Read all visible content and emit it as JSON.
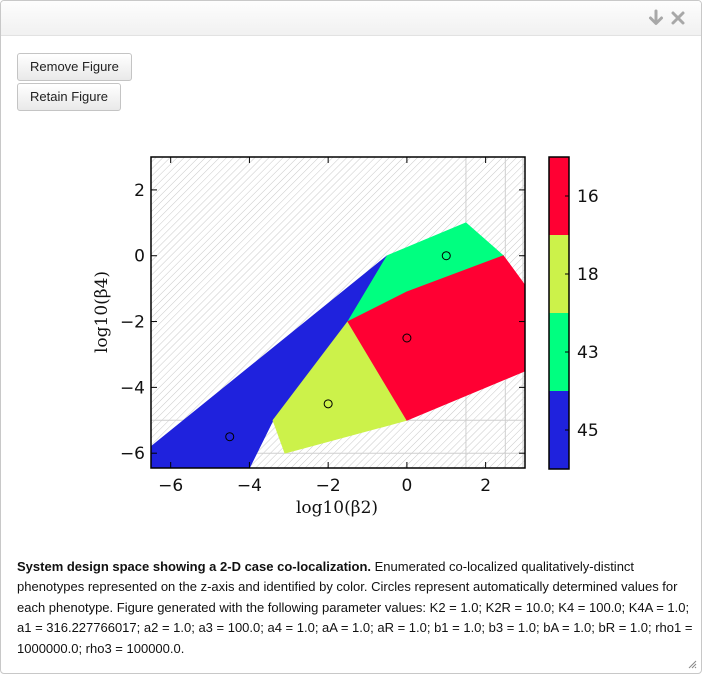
{
  "dialog": {
    "collapse_icon": "arrow-down-icon",
    "close_icon": "close-icon"
  },
  "buttons": {
    "remove_label": "Remove Figure",
    "retain_label": "Retain Figure"
  },
  "chart_data": {
    "type": "region-map",
    "xlabel": "log10(β2)",
    "ylabel": "log10(β4)",
    "xlim": [
      -6.5,
      3.0
    ],
    "ylim": [
      -6.45,
      3.0
    ],
    "xticks": [
      -6,
      -4,
      -2,
      0,
      2
    ],
    "yticks": [
      -6,
      -4,
      -2,
      0,
      2
    ],
    "xtick_labels": [
      "−6",
      "−4",
      "−2",
      "0",
      "2"
    ],
    "ytick_labels": [
      "−6",
      "−4",
      "−2",
      "0",
      "2"
    ],
    "background": "hatched gray",
    "regions": [
      {
        "label": "45",
        "color": "#1f22dd",
        "polygon": [
          [
            -6.5,
            -5.8
          ],
          [
            -0.5,
            0.0
          ],
          [
            -1.5,
            -2.0
          ],
          [
            -3.4,
            -5.0
          ],
          [
            -4.0,
            -6.45
          ],
          [
            -6.5,
            -6.45
          ]
        ],
        "circle": [
          -4.5,
          -5.5
        ]
      },
      {
        "label": "43",
        "color": "#00ff80",
        "polygon": [
          [
            -0.5,
            0.0
          ],
          [
            1.5,
            1.0
          ],
          [
            2.45,
            0.0
          ],
          [
            0.0,
            -1.1
          ],
          [
            -1.5,
            -2.0
          ]
        ],
        "circle": [
          1.0,
          0.0
        ]
      },
      {
        "label": "18",
        "color": "#ccf24a",
        "polygon": [
          [
            -1.5,
            -2.0
          ],
          [
            -3.4,
            -5.0
          ],
          [
            -3.1,
            -6.0
          ],
          [
            0.0,
            -5.0
          ]
        ],
        "circle": [
          -2.0,
          -4.5
        ]
      },
      {
        "label": "16",
        "color": "#ff0033",
        "polygon": [
          [
            -1.5,
            -2.0
          ],
          [
            0.0,
            -1.1
          ],
          [
            2.45,
            0.0
          ],
          [
            3.0,
            -0.9
          ],
          [
            3.0,
            -3.5
          ],
          [
            0.0,
            -5.0
          ]
        ],
        "circle": [
          0.0,
          -2.5
        ]
      }
    ],
    "gridlines_x": [
      1.5,
      2.5,
      2.95
    ],
    "gridlines_y": [
      -5.0,
      -6.0
    ],
    "colorbar": {
      "labels": [
        "16",
        "18",
        "43",
        "45"
      ],
      "colors": [
        "#ff0033",
        "#ccf24a",
        "#00ff80",
        "#1f22dd"
      ]
    }
  },
  "caption": {
    "bold": "System design space showing a 2-D case co-localization.",
    "text": " Enumerated co-localized qualitatively-distinct phenotypes represented on the z-axis and identified by color. Circles represent automatically determined values for each phenotype. Figure generated with the following parameter values: K2 = 1.0; K2R = 10.0; K4 = 100.0; K4A = 1.0; a1 = 316.227766017; a2 = 1.0; a3 = 100.0; a4 = 1.0; aA = 1.0; aR = 1.0; b1 = 1.0; b3 = 1.0; bA = 1.0; bR = 1.0; rho1 = 1000000.0; rho3 = 100000.0."
  }
}
